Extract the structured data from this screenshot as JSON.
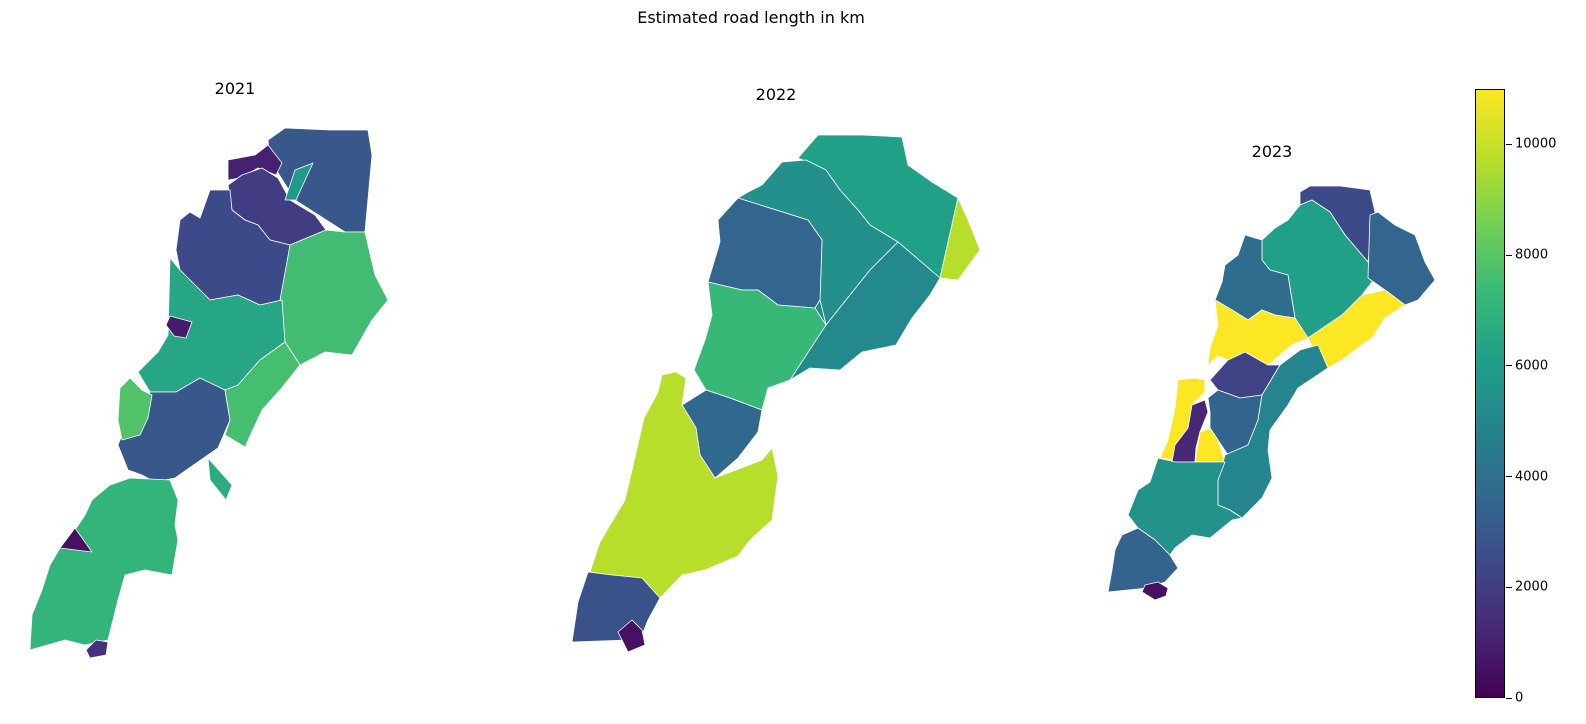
{
  "figure": {
    "title": "Estimated road length in km"
  },
  "panels": [
    {
      "title": "2021",
      "regions": [
        {
          "value": 3000
        },
        {
          "value": 1000
        },
        {
          "value": 2000
        },
        {
          "value": 6000
        },
        {
          "value": 2500
        },
        {
          "value": 7600
        },
        {
          "value": 6500
        },
        {
          "value": 800
        },
        {
          "value": 3000
        },
        {
          "value": 7700
        },
        {
          "value": 7900
        },
        {
          "value": 7200
        },
        {
          "value": 6800
        },
        {
          "value": 500
        },
        {
          "value": 1500
        }
      ]
    },
    {
      "title": "2022",
      "regions": [
        {
          "value": 6200
        },
        {
          "value": 5500
        },
        {
          "value": 3600
        },
        {
          "value": 5200
        },
        {
          "value": 7400
        },
        {
          "value": 3700
        },
        {
          "value": 9800
        },
        {
          "value": 9800
        },
        {
          "value": 2800
        },
        {
          "value": 500
        }
      ]
    },
    {
      "title": "2023",
      "regions": [
        {
          "value": 2500
        },
        {
          "value": 6200
        },
        {
          "value": 3600
        },
        {
          "value": 3900
        },
        {
          "value": 11000
        },
        {
          "value": 11000
        },
        {
          "value": 2200
        },
        {
          "value": 11000
        },
        {
          "value": 1200
        },
        {
          "value": 3500
        },
        {
          "value": 11000
        },
        {
          "value": 5000
        },
        {
          "value": 5600
        },
        {
          "value": 3500
        },
        {
          "value": 500
        }
      ]
    }
  ],
  "colorbar": {
    "min": 0,
    "max": 11000,
    "ticks": [
      "0",
      "2000",
      "4000",
      "6000",
      "8000",
      "10000"
    ],
    "colors": [
      "#440154",
      "#482878",
      "#3e4989",
      "#31688e",
      "#26828e",
      "#1f9e89",
      "#35b779",
      "#6ece58",
      "#b5de2b",
      "#fde725"
    ]
  }
}
